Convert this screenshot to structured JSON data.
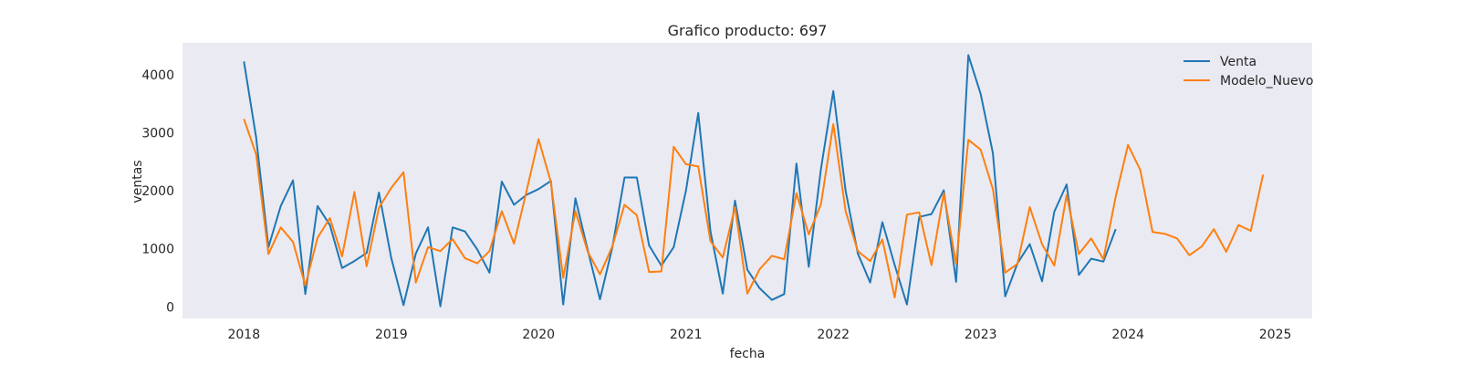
{
  "chart_data": {
    "type": "line",
    "title": "Grafico producto: 697",
    "xlabel": "fecha",
    "ylabel": "ventas",
    "x_ticks": [
      "2018",
      "2019",
      "2020",
      "2021",
      "2022",
      "2023",
      "2024",
      "2025"
    ],
    "y_ticks": [
      0,
      1000,
      2000,
      3000,
      4000
    ],
    "xlim": [
      "2017-08",
      "2025-04"
    ],
    "ylim": [
      -200,
      4550
    ],
    "grid": false,
    "legend_position": "top-right",
    "background": "#eaeaf2",
    "series": [
      {
        "name": "Venta",
        "color": "#1f77b4",
        "start": "2018-01",
        "values": [
          4230,
          2920,
          1030,
          1740,
          2180,
          220,
          1740,
          1410,
          670,
          790,
          930,
          1970,
          840,
          30,
          920,
          1370,
          10,
          1370,
          1300,
          990,
          590,
          2160,
          1760,
          1930,
          2030,
          2170,
          40,
          1870,
          980,
          130,
          1020,
          2230,
          2230,
          1060,
          710,
          1030,
          2000,
          3340,
          1300,
          230,
          1830,
          640,
          320,
          120,
          220,
          2470,
          690,
          2380,
          3720,
          2000,
          920,
          420,
          1460,
          720,
          40,
          1550,
          1600,
          2010,
          430,
          4340,
          3670,
          2650,
          180,
          750,
          1080,
          440,
          1640,
          2110,
          550,
          830,
          780,
          1340
        ]
      },
      {
        "name": "Modelo_Nuevo",
        "color": "#ff7f0e",
        "start": "2018-01",
        "values": [
          3240,
          2630,
          910,
          1370,
          1120,
          370,
          1190,
          1530,
          870,
          1980,
          700,
          1710,
          2050,
          2320,
          420,
          1030,
          960,
          1170,
          840,
          750,
          960,
          1650,
          1090,
          1980,
          2890,
          2150,
          500,
          1650,
          950,
          560,
          1040,
          1760,
          1580,
          600,
          610,
          2760,
          2460,
          2420,
          1130,
          850,
          1720,
          230,
          650,
          880,
          820,
          1960,
          1250,
          1770,
          3150,
          1650,
          960,
          790,
          1160,
          160,
          1590,
          1630,
          720,
          1960,
          740,
          2880,
          2710,
          2030,
          590,
          740,
          1720,
          1080,
          710,
          1930,
          910,
          1180,
          820,
          1900,
          2790,
          2360,
          1290,
          1260,
          1180,
          890,
          1040,
          1340,
          950,
          1410,
          1310,
          2280
        ]
      }
    ]
  }
}
